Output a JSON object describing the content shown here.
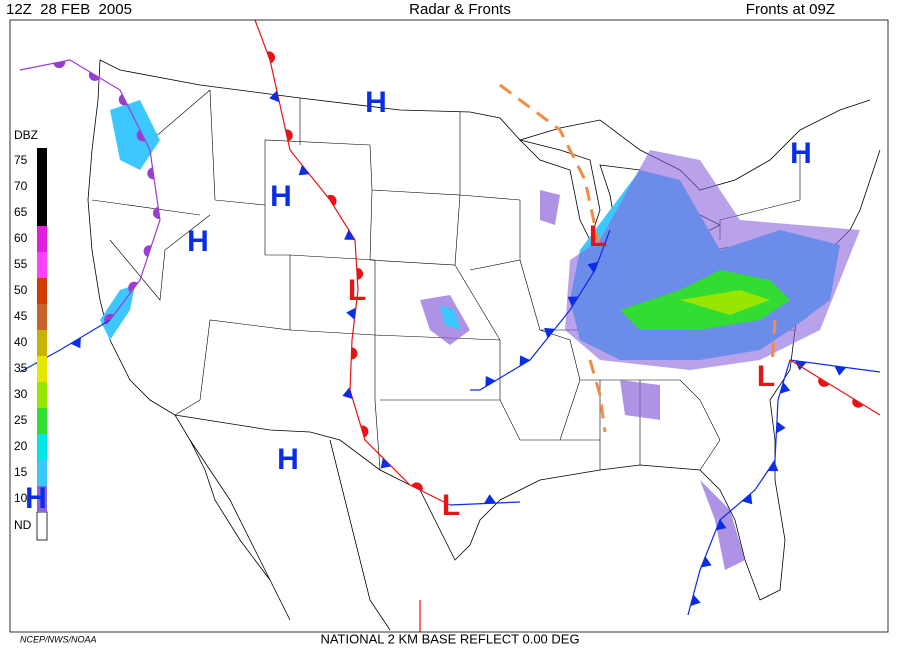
{
  "header": {
    "left": "12Z  28 FEB  2005",
    "center": "Radar & Fronts",
    "right": "Fronts at 09Z"
  },
  "legend": {
    "title": "DBZ",
    "levels": [
      {
        "label": "75",
        "color": "#000000"
      },
      {
        "label": "70",
        "color": "#000000"
      },
      {
        "label": "65",
        "color": "#000000"
      },
      {
        "label": "60",
        "color": "#e01ee0"
      },
      {
        "label": "55",
        "color": "#ff40ff"
      },
      {
        "label": "50",
        "color": "#d23c00"
      },
      {
        "label": "45",
        "color": "#c86428"
      },
      {
        "label": "40",
        "color": "#c8b400"
      },
      {
        "label": "35",
        "color": "#e6e600"
      },
      {
        "label": "30",
        "color": "#96e600"
      },
      {
        "label": "25",
        "color": "#32dc32"
      },
      {
        "label": "20",
        "color": "#00e6e6"
      },
      {
        "label": "15",
        "color": "#3cc8ff"
      },
      {
        "label": "10",
        "color": "#8c64dc"
      }
    ],
    "nodata": "ND"
  },
  "pressure_centers": [
    {
      "label": "H",
      "type": "high"
    },
    {
      "label": "H",
      "type": "high"
    },
    {
      "label": "H",
      "type": "high"
    },
    {
      "label": "H",
      "type": "high"
    },
    {
      "label": "H",
      "type": "high"
    },
    {
      "label": "H",
      "type": "high"
    },
    {
      "label": "L",
      "type": "low"
    },
    {
      "label": "L",
      "type": "low"
    },
    {
      "label": "L",
      "type": "low"
    },
    {
      "label": "L",
      "type": "low"
    }
  ],
  "footer": {
    "left": "NCEP/NWS/NOAA",
    "center": "NATIONAL 2 KM BASE REFLECT 0.00 DEG"
  }
}
